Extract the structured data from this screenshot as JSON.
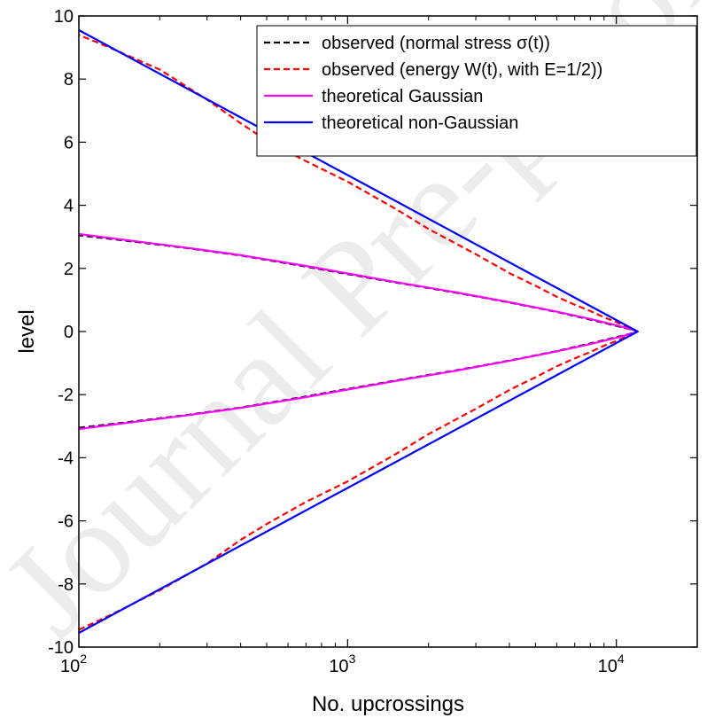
{
  "chart_data": {
    "type": "line",
    "xlabel": "No. upcrossings",
    "ylabel": "level",
    "x_scale": "log",
    "xlim": [
      100,
      20000
    ],
    "ylim": [
      -10,
      10
    ],
    "x_ticks": [
      {
        "value": 100,
        "base": "10",
        "exp": "2"
      },
      {
        "value": 1000,
        "base": "10",
        "exp": "3"
      },
      {
        "value": 10000,
        "base": "10",
        "exp": "4"
      }
    ],
    "y_ticks": [
      {
        "value": -10,
        "label": "-10"
      },
      {
        "value": -8,
        "label": "-8"
      },
      {
        "value": -6,
        "label": "-6"
      },
      {
        "value": -4,
        "label": "-4"
      },
      {
        "value": -2,
        "label": "-2"
      },
      {
        "value": 0,
        "label": "0"
      },
      {
        "value": 2,
        "label": "2"
      },
      {
        "value": 4,
        "label": "4"
      },
      {
        "value": 6,
        "label": "6"
      },
      {
        "value": 8,
        "label": "8"
      },
      {
        "value": 10,
        "label": "10"
      }
    ],
    "grid": false,
    "legend_position": "top-right",
    "series": [
      {
        "name": "observed (normal stress σ(t))",
        "color": "#000000",
        "dash": "dashed",
        "points": [
          [
            100,
            -3.05
          ],
          [
            150,
            -2.88
          ],
          [
            250,
            -2.65
          ],
          [
            400,
            -2.41
          ],
          [
            700,
            -2.06
          ],
          [
            1000,
            -1.82
          ],
          [
            1500,
            -1.56
          ],
          [
            2500,
            -1.24
          ],
          [
            4000,
            -0.92
          ],
          [
            6000,
            -0.62
          ],
          [
            8000,
            -0.38
          ],
          [
            10000,
            -0.18
          ],
          [
            11500,
            -0.05
          ],
          [
            12000,
            0
          ],
          [
            11500,
            0.05
          ],
          [
            10000,
            0.18
          ],
          [
            8000,
            0.38
          ],
          [
            6000,
            0.62
          ],
          [
            4000,
            0.92
          ],
          [
            2500,
            1.24
          ],
          [
            1500,
            1.56
          ],
          [
            1000,
            1.82
          ],
          [
            700,
            2.06
          ],
          [
            400,
            2.41
          ],
          [
            250,
            2.65
          ],
          [
            150,
            2.88
          ],
          [
            100,
            3.05
          ]
        ]
      },
      {
        "name": "observed (energy W(t), with E=1/2))",
        "color": "#ff0000",
        "dash": "dashed",
        "points": [
          [
            100,
            -9.45
          ],
          [
            130,
            -9.0
          ],
          [
            200,
            -8.2
          ],
          [
            300,
            -7.35
          ],
          [
            400,
            -6.6
          ],
          [
            500,
            -6.1
          ],
          [
            700,
            -5.4
          ],
          [
            1000,
            -4.75
          ],
          [
            1500,
            -3.9
          ],
          [
            2000,
            -3.25
          ],
          [
            3000,
            -2.45
          ],
          [
            4000,
            -1.85
          ],
          [
            5000,
            -1.45
          ],
          [
            6000,
            -1.1
          ],
          [
            7000,
            -0.85
          ],
          [
            8000,
            -0.65
          ],
          [
            9000,
            -0.45
          ],
          [
            10000,
            -0.3
          ],
          [
            11000,
            -0.15
          ],
          [
            12000,
            0
          ],
          [
            11000,
            0.15
          ],
          [
            10000,
            0.3
          ],
          [
            9000,
            0.45
          ],
          [
            8000,
            0.65
          ],
          [
            7000,
            0.85
          ],
          [
            6000,
            1.1
          ],
          [
            5000,
            1.45
          ],
          [
            4000,
            1.85
          ],
          [
            3000,
            2.45
          ],
          [
            2000,
            3.25
          ],
          [
            1500,
            3.9
          ],
          [
            1000,
            4.75
          ],
          [
            700,
            5.4
          ],
          [
            500,
            6.05
          ],
          [
            400,
            6.6
          ],
          [
            300,
            7.35
          ],
          [
            200,
            8.3
          ],
          [
            130,
            9.0
          ],
          [
            100,
            9.4
          ]
        ]
      },
      {
        "name": "theoretical Gaussian",
        "color": "#ff00ff",
        "dash": "solid",
        "points": [
          [
            100,
            -3.09
          ],
          [
            150,
            -2.9
          ],
          [
            250,
            -2.66
          ],
          [
            400,
            -2.42
          ],
          [
            700,
            -2.08
          ],
          [
            1000,
            -1.84
          ],
          [
            1500,
            -1.57
          ],
          [
            2500,
            -1.25
          ],
          [
            4000,
            -0.93
          ],
          [
            6000,
            -0.63
          ],
          [
            8000,
            -0.4
          ],
          [
            10000,
            -0.2
          ],
          [
            11500,
            -0.06
          ],
          [
            12000,
            0
          ],
          [
            11500,
            0.06
          ],
          [
            10000,
            0.2
          ],
          [
            8000,
            0.4
          ],
          [
            6000,
            0.63
          ],
          [
            4000,
            0.93
          ],
          [
            2500,
            1.25
          ],
          [
            1500,
            1.57
          ],
          [
            1000,
            1.84
          ],
          [
            700,
            2.08
          ],
          [
            400,
            2.42
          ],
          [
            250,
            2.66
          ],
          [
            150,
            2.9
          ],
          [
            100,
            3.09
          ]
        ]
      },
      {
        "name": "theoretical non-Gaussian",
        "color": "#0000ff",
        "dash": "solid",
        "points": [
          [
            100,
            -9.55
          ],
          [
            12000,
            0
          ],
          [
            100,
            9.55
          ]
        ]
      }
    ]
  },
  "watermark": {
    "text": "Journal Pre-proof"
  }
}
